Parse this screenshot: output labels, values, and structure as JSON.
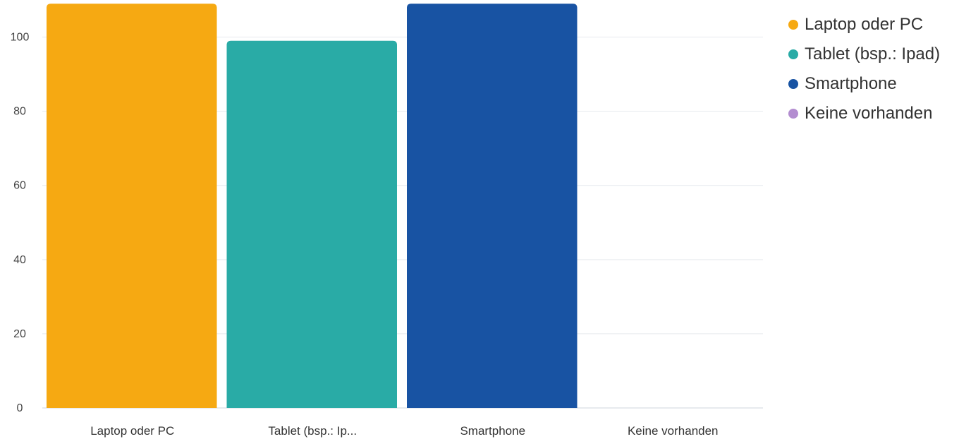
{
  "chart_data": {
    "type": "bar",
    "categories": [
      "Laptop oder PC",
      "Tablet (bsp.: Ip...",
      "Smartphone",
      "Keine vorhanden"
    ],
    "series": [
      {
        "name": "Laptop oder PC",
        "value": 109,
        "color": "#F6A912"
      },
      {
        "name": "Tablet (bsp.: Ipad)",
        "value": 99,
        "color": "#29ABA6"
      },
      {
        "name": "Smartphone",
        "value": 109,
        "color": "#1853A3"
      },
      {
        "name": "Keine vorhanden",
        "value": 0,
        "color": "#B38DD0"
      }
    ],
    "yticks": [
      "0",
      "20",
      "40",
      "60",
      "80",
      "100"
    ],
    "ylim": [
      0,
      110
    ],
    "grid": true,
    "legend_position": "top-right"
  }
}
